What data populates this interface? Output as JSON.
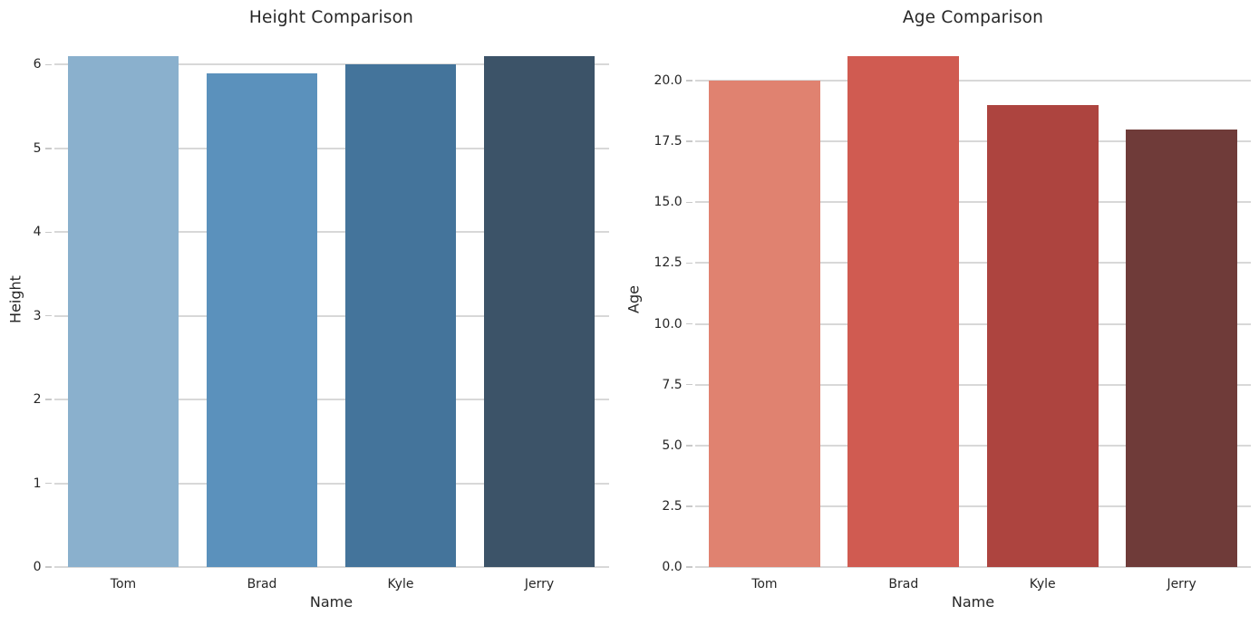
{
  "figure": {
    "background": "#ffffff"
  },
  "style": {
    "grid_color": "#d8d8d8",
    "tick_color": "#c9c9c9",
    "text_color": "#262626"
  },
  "chart_data": [
    {
      "type": "bar",
      "title": "Height Comparison",
      "xlabel": "Name",
      "ylabel": "Height",
      "categories": [
        "Tom",
        "Brad",
        "Kyle",
        "Jerry"
      ],
      "values": [
        6.1,
        5.9,
        6.0,
        6.1
      ],
      "bar_colors": [
        "#8ab0cd",
        "#5b91bc",
        "#44749b",
        "#3c5368"
      ],
      "ylim": [
        0,
        6.405
      ],
      "yticks": [
        0,
        1,
        2,
        3,
        4,
        5,
        6
      ],
      "ytick_labels": [
        "0",
        "1",
        "2",
        "3",
        "4",
        "5",
        "6"
      ],
      "grid": "on",
      "legend": "none"
    },
    {
      "type": "bar",
      "title": "Age Comparison",
      "xlabel": "Name",
      "ylabel": "Age",
      "categories": [
        "Tom",
        "Brad",
        "Kyle",
        "Jerry"
      ],
      "values": [
        20,
        21,
        19,
        18
      ],
      "bar_colors": [
        "#e08270",
        "#d05b51",
        "#ad443f",
        "#6f3b39"
      ],
      "ylim": [
        0,
        22.05
      ],
      "yticks": [
        0,
        2.5,
        5,
        7.5,
        10,
        12.5,
        15,
        17.5,
        20
      ],
      "ytick_labels": [
        "0.0",
        "2.5",
        "5.0",
        "7.5",
        "10.0",
        "12.5",
        "15.0",
        "17.5",
        "20.0"
      ],
      "grid": "on",
      "legend": "none"
    }
  ]
}
